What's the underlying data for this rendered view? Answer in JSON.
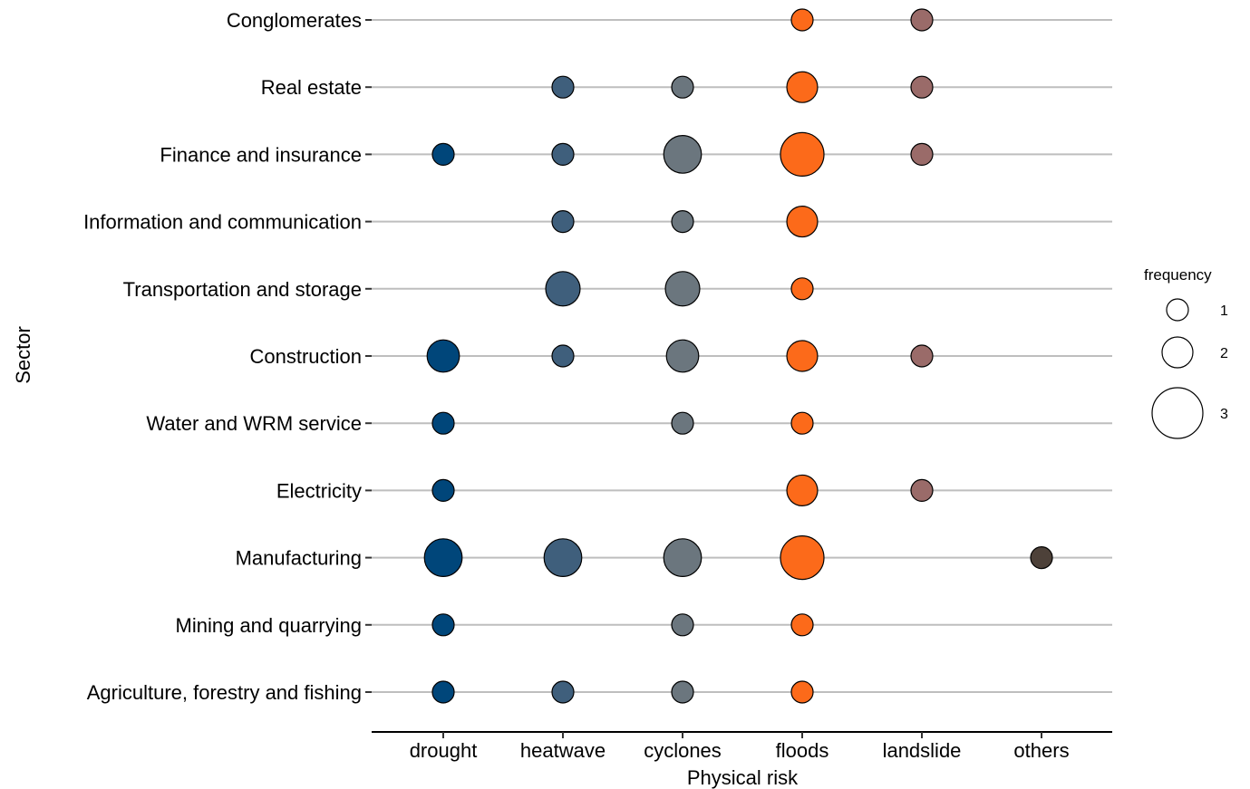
{
  "chart_data": {
    "type": "scatter",
    "subtype": "bubble",
    "xlabel": "Physical risk",
    "ylabel": "Sector",
    "categories_x": [
      "drought",
      "heatwave",
      "cyclones",
      "floods",
      "landslide",
      "others"
    ],
    "categories_y": [
      "Conglomerates",
      "Real estate",
      "Finance and insurance",
      "Information and communication",
      "Transportation and storage",
      "Construction",
      "Water and WRM service",
      "Electricity",
      "Manufacturing",
      "Mining and quarrying",
      "Agriculture, forestry and fishing"
    ],
    "colors": {
      "drought": "#00467a",
      "heatwave": "#3f5f7c",
      "cyclones": "#6b767e",
      "floods": "#fc6a1a",
      "landslide": "#9a6b69",
      "others": "#4d4139"
    },
    "gridline_color": "#bebebe",
    "grid": "horizontal",
    "legend": {
      "title": "frequency",
      "position": "right",
      "values": [
        1,
        2,
        3
      ]
    },
    "points": [
      {
        "sector": "Conglomerates",
        "risk": "floods",
        "frequency": 1
      },
      {
        "sector": "Conglomerates",
        "risk": "landslide",
        "frequency": 1
      },
      {
        "sector": "Real estate",
        "risk": "heatwave",
        "frequency": 1
      },
      {
        "sector": "Real estate",
        "risk": "cyclones",
        "frequency": 1
      },
      {
        "sector": "Real estate",
        "risk": "floods",
        "frequency": 2
      },
      {
        "sector": "Real estate",
        "risk": "landslide",
        "frequency": 1
      },
      {
        "sector": "Finance and insurance",
        "risk": "drought",
        "frequency": 1
      },
      {
        "sector": "Finance and insurance",
        "risk": "heatwave",
        "frequency": 1
      },
      {
        "sector": "Finance and insurance",
        "risk": "cyclones",
        "frequency": 3
      },
      {
        "sector": "Finance and insurance",
        "risk": "floods",
        "frequency": 4
      },
      {
        "sector": "Finance and insurance",
        "risk": "landslide",
        "frequency": 1
      },
      {
        "sector": "Information and communication",
        "risk": "heatwave",
        "frequency": 1
      },
      {
        "sector": "Information and communication",
        "risk": "cyclones",
        "frequency": 1
      },
      {
        "sector": "Information and communication",
        "risk": "floods",
        "frequency": 2
      },
      {
        "sector": "Transportation and storage",
        "risk": "heatwave",
        "frequency": 2.5
      },
      {
        "sector": "Transportation and storage",
        "risk": "cyclones",
        "frequency": 2.5
      },
      {
        "sector": "Transportation and storage",
        "risk": "floods",
        "frequency": 1
      },
      {
        "sector": "Construction",
        "risk": "drought",
        "frequency": 2.2
      },
      {
        "sector": "Construction",
        "risk": "heatwave",
        "frequency": 1
      },
      {
        "sector": "Construction",
        "risk": "cyclones",
        "frequency": 2.2
      },
      {
        "sector": "Construction",
        "risk": "floods",
        "frequency": 2
      },
      {
        "sector": "Construction",
        "risk": "landslide",
        "frequency": 1
      },
      {
        "sector": "Water and WRM service",
        "risk": "drought",
        "frequency": 1
      },
      {
        "sector": "Water and WRM service",
        "risk": "cyclones",
        "frequency": 1
      },
      {
        "sector": "Water and WRM service",
        "risk": "floods",
        "frequency": 1
      },
      {
        "sector": "Electricity",
        "risk": "drought",
        "frequency": 1
      },
      {
        "sector": "Electricity",
        "risk": "floods",
        "frequency": 2
      },
      {
        "sector": "Electricity",
        "risk": "landslide",
        "frequency": 1
      },
      {
        "sector": "Manufacturing",
        "risk": "drought",
        "frequency": 3
      },
      {
        "sector": "Manufacturing",
        "risk": "heatwave",
        "frequency": 3
      },
      {
        "sector": "Manufacturing",
        "risk": "cyclones",
        "frequency": 3
      },
      {
        "sector": "Manufacturing",
        "risk": "floods",
        "frequency": 4
      },
      {
        "sector": "Manufacturing",
        "risk": "others",
        "frequency": 1
      },
      {
        "sector": "Mining and quarrying",
        "risk": "drought",
        "frequency": 1
      },
      {
        "sector": "Mining and quarrying",
        "risk": "cyclones",
        "frequency": 1
      },
      {
        "sector": "Mining and quarrying",
        "risk": "floods",
        "frequency": 1
      },
      {
        "sector": "Agriculture, forestry and fishing",
        "risk": "drought",
        "frequency": 1
      },
      {
        "sector": "Agriculture, forestry and fishing",
        "risk": "heatwave",
        "frequency": 1
      },
      {
        "sector": "Agriculture, forestry and fishing",
        "risk": "cyclones",
        "frequency": 1
      },
      {
        "sector": "Agriculture, forestry and fishing",
        "risk": "floods",
        "frequency": 1
      }
    ]
  }
}
